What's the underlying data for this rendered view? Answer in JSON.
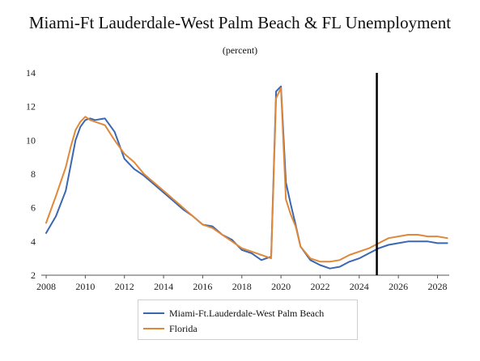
{
  "chart_data": {
    "type": "line",
    "title": "Miami-Ft Lauderdale-West Palm Beach & FL Unemployment",
    "subtitle": "(percent)",
    "xlabel": "",
    "ylabel": "",
    "xlim": [
      2007.75,
      2028.6
    ],
    "ylim": [
      2,
      14
    ],
    "x_ticks": [
      "2008",
      "2010",
      "2012",
      "2014",
      "2016",
      "2018",
      "2020",
      "2022",
      "2024",
      "2026",
      "2028"
    ],
    "y_ticks": [
      "2",
      "4",
      "6",
      "8",
      "10",
      "12",
      "14"
    ],
    "grid": false,
    "vertical_marker_x": 2024.9,
    "legend_position": "bottom",
    "series": [
      {
        "name": "Miami-Ft.Lauderdale-West Palm Beach",
        "color": "#3a67b0",
        "x": [
          2008.0,
          2008.5,
          2009.0,
          2009.25,
          2009.5,
          2009.75,
          2010.0,
          2010.25,
          2010.5,
          2011.0,
          2011.5,
          2012.0,
          2012.5,
          2013.0,
          2013.5,
          2014.0,
          2014.5,
          2015.0,
          2015.5,
          2016.0,
          2016.5,
          2017.0,
          2017.5,
          2018.0,
          2018.5,
          2019.0,
          2019.5,
          2019.75,
          2020.0,
          2020.25,
          2020.5,
          2020.75,
          2021.0,
          2021.5,
          2022.0,
          2022.5,
          2023.0,
          2023.5,
          2024.0,
          2024.5,
          2025.0,
          2025.5,
          2026.0,
          2026.5,
          2027.0,
          2027.5,
          2028.0,
          2028.5
        ],
        "y": [
          4.5,
          5.5,
          7.0,
          8.5,
          10.0,
          10.8,
          11.2,
          11.3,
          11.2,
          11.3,
          10.5,
          8.9,
          8.3,
          7.9,
          7.4,
          6.9,
          6.4,
          5.9,
          5.5,
          5.0,
          4.9,
          4.4,
          4.1,
          3.5,
          3.3,
          2.9,
          3.1,
          12.9,
          13.2,
          7.5,
          6.2,
          5.0,
          3.7,
          2.9,
          2.6,
          2.4,
          2.5,
          2.8,
          3.0,
          3.3,
          3.6,
          3.8,
          3.9,
          4.0,
          4.0,
          4.0,
          3.9,
          3.9
        ]
      },
      {
        "name": "Florida",
        "color": "#e0883a",
        "x": [
          2008.0,
          2008.5,
          2009.0,
          2009.25,
          2009.5,
          2009.75,
          2010.0,
          2010.25,
          2010.5,
          2011.0,
          2011.5,
          2012.0,
          2012.5,
          2013.0,
          2013.5,
          2014.0,
          2014.5,
          2015.0,
          2015.5,
          2016.0,
          2016.5,
          2017.0,
          2017.5,
          2018.0,
          2018.5,
          2019.0,
          2019.5,
          2019.75,
          2020.0,
          2020.25,
          2020.5,
          2020.75,
          2021.0,
          2021.5,
          2022.0,
          2022.5,
          2023.0,
          2023.5,
          2024.0,
          2024.5,
          2025.0,
          2025.5,
          2026.0,
          2026.5,
          2027.0,
          2027.5,
          2028.0,
          2028.5
        ],
        "y": [
          5.1,
          6.7,
          8.4,
          9.6,
          10.6,
          11.1,
          11.4,
          11.2,
          11.1,
          10.9,
          10.0,
          9.2,
          8.7,
          8.0,
          7.5,
          7.0,
          6.5,
          6.0,
          5.5,
          5.0,
          4.8,
          4.4,
          4.0,
          3.6,
          3.4,
          3.2,
          3.0,
          12.5,
          13.1,
          6.5,
          5.6,
          4.9,
          3.7,
          3.0,
          2.8,
          2.8,
          2.9,
          3.2,
          3.4,
          3.6,
          3.9,
          4.2,
          4.3,
          4.4,
          4.4,
          4.3,
          4.3,
          4.2
        ]
      }
    ]
  }
}
